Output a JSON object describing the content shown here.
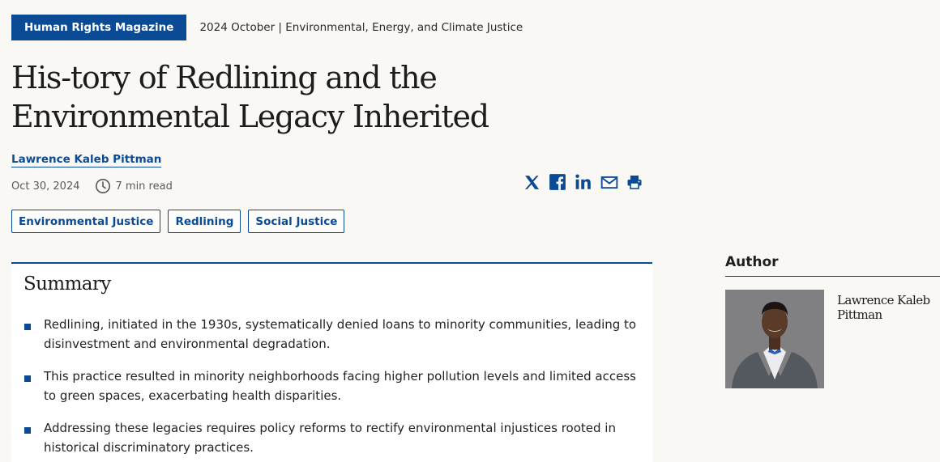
{
  "header": {
    "magazine": "Human Rights Magazine",
    "issue": "2024 October | Environmental, Energy, and Climate Justice"
  },
  "article": {
    "title": "His-tory of Redlining and the Environmental Legacy Inherited",
    "author": "Lawrence Kaleb Pittman",
    "date": "Oct 30, 2024",
    "read_time": "7 min read"
  },
  "share_icons": [
    "x-icon",
    "facebook-icon",
    "linkedin-icon",
    "email-icon",
    "print-icon"
  ],
  "tags": [
    "Environmental Justice",
    "Redlining",
    "Social Justice"
  ],
  "summary": {
    "heading": "Summary",
    "points": [
      "Redlining, initiated in the 1930s, systematically denied loans to minority communities, leading to disinvestment and environmental degradation.",
      "This practice resulted in minority neighborhoods facing higher pollution levels and limited access to green spaces, exacerbating health disparities.",
      "Addressing these legacies requires policy reforms to rectify environmental injustices rooted in historical discriminatory practices."
    ]
  },
  "sidebar": {
    "heading": "Author",
    "author_name": "Lawrence Kaleb Pittman"
  },
  "colors": {
    "brand_blue": "#0b4a94",
    "page_bg": "#f9f8f5"
  }
}
